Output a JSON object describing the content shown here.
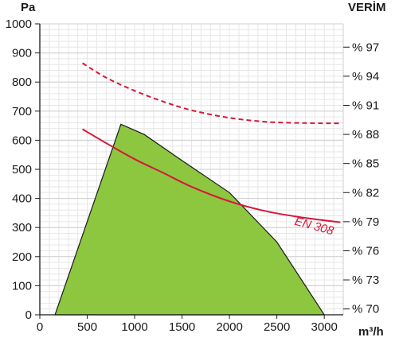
{
  "chart_data": {
    "type": "line",
    "ylabel": "Pa",
    "xlabel": "m³/h",
    "y2label": "VERİM",
    "xlim": [
      0,
      3200
    ],
    "ylim": [
      0,
      1000
    ],
    "x_ticks": [
      "0",
      "500",
      "1000",
      "1500",
      "2000",
      "2500",
      "3000"
    ],
    "x_tick_values": [
      0,
      500,
      1000,
      1500,
      2000,
      2500,
      3000
    ],
    "y_ticks": [
      "0",
      "100",
      "200",
      "300",
      "400",
      "500",
      "600",
      "700",
      "800",
      "900",
      "1000"
    ],
    "y_tick_values": [
      0,
      100,
      200,
      300,
      400,
      500,
      600,
      700,
      800,
      900,
      1000
    ],
    "y2_ticks": [
      "% 70",
      "% 73",
      "% 76",
      "% 79",
      "% 82",
      "% 85",
      "% 88",
      "% 91",
      "% 94",
      "% 97"
    ],
    "y2_tick_values": [
      70,
      73,
      76,
      79,
      82,
      85,
      88,
      91,
      94,
      97
    ],
    "y2lim": [
      69.4,
      99.4
    ],
    "grid": true,
    "operating_area": {
      "color": "#8dc63f",
      "points": [
        [
          160,
          0
        ],
        [
          855,
          655
        ],
        [
          1100,
          620
        ],
        [
          1500,
          530
        ],
        [
          2000,
          420
        ],
        [
          2500,
          250
        ],
        [
          3000,
          0
        ]
      ]
    },
    "series": [
      {
        "name": "EN 308",
        "style": "solid",
        "color": "#d6173a",
        "x": [
          450,
          700,
          1000,
          1300,
          1600,
          2000,
          2400,
          2800,
          3170
        ],
        "y": [
          638,
          590,
          535,
          488,
          440,
          390,
          355,
          333,
          318
        ]
      },
      {
        "style": "dashed",
        "color": "#d6173a",
        "x": [
          450,
          700,
          1000,
          1300,
          1600,
          2000,
          2400,
          2800,
          3170
        ],
        "y": [
          865,
          815,
          770,
          733,
          703,
          677,
          663,
          659,
          658
        ]
      }
    ],
    "annotations": [
      {
        "text": "EN 308",
        "x": 2680,
        "y": 310,
        "rotate": 15
      }
    ]
  }
}
